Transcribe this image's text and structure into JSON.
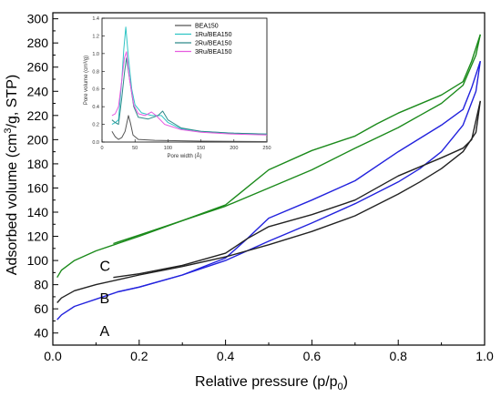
{
  "chart_data": [
    {
      "type": "line",
      "id": "main",
      "xlabel": "Relative pressure (p/p",
      "xlabel_sub": "0",
      "xlabel_end": ")",
      "ylabel_pre": "Adsorbed volume (cm",
      "ylabel_sup": "3",
      "ylabel_post": "/g, STP)",
      "xlim": [
        0.0,
        1.0
      ],
      "ylim": [
        30,
        305
      ],
      "xticks": [
        "0.0",
        "0.2",
        "0.4",
        "0.6",
        "0.8",
        "1.0"
      ],
      "yticks": [
        "40",
        "60",
        "80",
        "100",
        "120",
        "140",
        "160",
        "180",
        "200",
        "220",
        "240",
        "260",
        "280",
        "300"
      ],
      "grid": false,
      "series": [
        {
          "name": "A",
          "color": "#2222dd",
          "adsorption": [
            [
              0.01,
              51
            ],
            [
              0.02,
              55
            ],
            [
              0.05,
              62
            ],
            [
              0.1,
              68
            ],
            [
              0.15,
              74
            ],
            [
              0.2,
              78
            ],
            [
              0.3,
              88
            ],
            [
              0.4,
              100
            ],
            [
              0.45,
              108
            ],
            [
              0.5,
              116
            ],
            [
              0.6,
              131
            ],
            [
              0.7,
              147
            ],
            [
              0.8,
              165
            ],
            [
              0.85,
              176
            ],
            [
              0.9,
              190
            ],
            [
              0.95,
              212
            ],
            [
              0.98,
              240
            ],
            [
              0.99,
              265
            ]
          ],
          "desorption": [
            [
              0.99,
              265
            ],
            [
              0.97,
              243
            ],
            [
              0.95,
              225
            ],
            [
              0.9,
              212
            ],
            [
              0.8,
              190
            ],
            [
              0.7,
              166
            ],
            [
              0.6,
              150
            ],
            [
              0.5,
              135
            ],
            [
              0.45,
              118
            ],
            [
              0.4,
              102
            ],
            [
              0.3,
              88
            ],
            [
              0.2,
              78
            ],
            [
              0.15,
              74
            ]
          ]
        },
        {
          "name": "B",
          "color": "#222222",
          "adsorption": [
            [
              0.01,
              65
            ],
            [
              0.02,
              69
            ],
            [
              0.05,
              75
            ],
            [
              0.1,
              80
            ],
            [
              0.15,
              84
            ],
            [
              0.2,
              88
            ],
            [
              0.3,
              95
            ],
            [
              0.4,
              103
            ],
            [
              0.5,
              113
            ],
            [
              0.6,
              124
            ],
            [
              0.7,
              137
            ],
            [
              0.8,
              155
            ],
            [
              0.85,
              165
            ],
            [
              0.9,
              176
            ],
            [
              0.95,
              190
            ],
            [
              0.98,
              206
            ],
            [
              0.99,
              232
            ]
          ],
          "desorption": [
            [
              0.99,
              232
            ],
            [
              0.97,
              200
            ],
            [
              0.95,
              193
            ],
            [
              0.9,
              185
            ],
            [
              0.8,
              170
            ],
            [
              0.7,
              150
            ],
            [
              0.6,
              138
            ],
            [
              0.5,
              128
            ],
            [
              0.45,
              118
            ],
            [
              0.4,
              106
            ],
            [
              0.3,
              96
            ],
            [
              0.2,
              89
            ],
            [
              0.14,
              86
            ]
          ]
        },
        {
          "name": "C",
          "color": "#1b8a1b",
          "adsorption": [
            [
              0.01,
              86
            ],
            [
              0.02,
              92
            ],
            [
              0.05,
              100
            ],
            [
              0.1,
              108
            ],
            [
              0.15,
              114
            ],
            [
              0.2,
              120
            ],
            [
              0.3,
              133
            ],
            [
              0.4,
              145
            ],
            [
              0.5,
              160
            ],
            [
              0.6,
              175
            ],
            [
              0.7,
              193
            ],
            [
              0.8,
              210
            ],
            [
              0.85,
              220
            ],
            [
              0.9,
              230
            ],
            [
              0.95,
              245
            ],
            [
              0.98,
              270
            ],
            [
              0.99,
              287
            ]
          ],
          "desorption": [
            [
              0.99,
              287
            ],
            [
              0.97,
              265
            ],
            [
              0.95,
              248
            ],
            [
              0.9,
              237
            ],
            [
              0.8,
              222
            ],
            [
              0.75,
              213
            ],
            [
              0.7,
              203
            ],
            [
              0.6,
              191
            ],
            [
              0.5,
              175
            ],
            [
              0.4,
              146
            ],
            [
              0.3,
              133
            ],
            [
              0.2,
              121
            ],
            [
              0.14,
              114
            ]
          ]
        }
      ]
    },
    {
      "type": "line",
      "id": "inset",
      "xlabel": "Pore width (Å)",
      "ylabel": "Pore volume (cm³/g)",
      "xlim": [
        0,
        250
      ],
      "ylim": [
        0.0,
        1.4
      ],
      "xticks": [
        "0",
        "50",
        "100",
        "150",
        "200",
        "250"
      ],
      "yticks": [
        "0.0",
        "0.2",
        "0.4",
        "0.6",
        "0.8",
        "1.0",
        "1.2",
        "1.4"
      ],
      "legend": "top-right",
      "series": [
        {
          "name": "BEA150",
          "color": "#555555",
          "points": [
            [
              15,
              0.12
            ],
            [
              20,
              0.06
            ],
            [
              25,
              0.03
            ],
            [
              30,
              0.05
            ],
            [
              35,
              0.12
            ],
            [
              40,
              0.3
            ],
            [
              43,
              0.22
            ],
            [
              47,
              0.08
            ],
            [
              55,
              0.03
            ],
            [
              80,
              0.02
            ],
            [
              150,
              0.01
            ],
            [
              250,
              0.005
            ]
          ]
        },
        {
          "name": "1Ru/BEA150",
          "color": "#2ec4c4",
          "points": [
            [
              15,
              0.2
            ],
            [
              20,
              0.22
            ],
            [
              25,
              0.25
            ],
            [
              30,
              0.7
            ],
            [
              33,
              1.05
            ],
            [
              36,
              1.3
            ],
            [
              40,
              0.95
            ],
            [
              45,
              0.6
            ],
            [
              50,
              0.42
            ],
            [
              60,
              0.33
            ],
            [
              75,
              0.3
            ],
            [
              90,
              0.3
            ],
            [
              100,
              0.22
            ],
            [
              120,
              0.15
            ],
            [
              150,
              0.12
            ],
            [
              200,
              0.1
            ],
            [
              250,
              0.09
            ]
          ]
        },
        {
          "name": "2Ru/BEA150",
          "color": "#2e8b8b",
          "points": [
            [
              15,
              0.25
            ],
            [
              20,
              0.22
            ],
            [
              25,
              0.2
            ],
            [
              30,
              0.5
            ],
            [
              34,
              0.78
            ],
            [
              37,
              0.95
            ],
            [
              42,
              0.7
            ],
            [
              48,
              0.4
            ],
            [
              55,
              0.28
            ],
            [
              70,
              0.26
            ],
            [
              85,
              0.3
            ],
            [
              92,
              0.35
            ],
            [
              100,
              0.25
            ],
            [
              120,
              0.16
            ],
            [
              150,
              0.12
            ],
            [
              200,
              0.1
            ],
            [
              250,
              0.09
            ]
          ]
        },
        {
          "name": "3Ru/BEA150",
          "color": "#e65ce0",
          "points": [
            [
              15,
              0.3
            ],
            [
              20,
              0.32
            ],
            [
              25,
              0.4
            ],
            [
              30,
              0.7
            ],
            [
              34,
              0.95
            ],
            [
              37,
              1.02
            ],
            [
              42,
              0.7
            ],
            [
              48,
              0.42
            ],
            [
              55,
              0.32
            ],
            [
              65,
              0.3
            ],
            [
              75,
              0.34
            ],
            [
              82,
              0.3
            ],
            [
              95,
              0.2
            ],
            [
              120,
              0.14
            ],
            [
              150,
              0.11
            ],
            [
              200,
              0.09
            ],
            [
              250,
              0.08
            ]
          ]
        }
      ]
    }
  ]
}
